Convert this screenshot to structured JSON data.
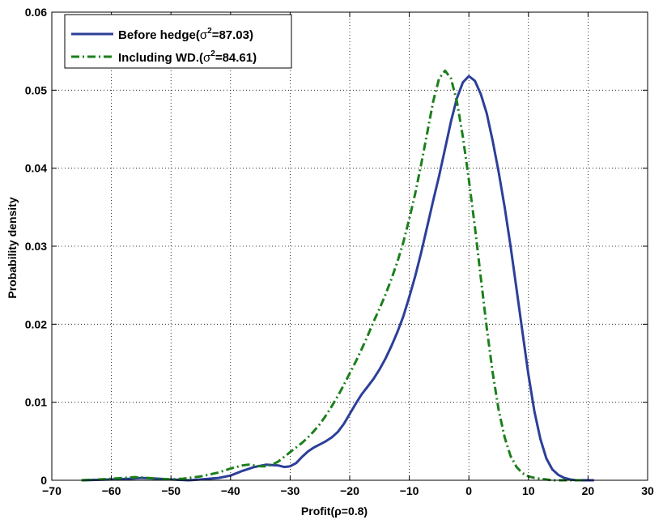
{
  "chart_data": {
    "type": "line",
    "xlabel": "Profit(ρ=0.8)",
    "ylabel": "Probability density",
    "xlim": [
      -70,
      30
    ],
    "ylim": [
      0,
      0.06
    ],
    "xticks": [
      -70,
      -60,
      -50,
      -40,
      -30,
      -20,
      -10,
      0,
      10,
      20,
      30
    ],
    "xtick_labels": [
      "−70",
      "−60",
      "−50",
      "−40",
      "−30",
      "−20",
      "−10",
      "0",
      "10",
      "20",
      "30"
    ],
    "yticks": [
      0,
      0.01,
      0.02,
      0.03,
      0.04,
      0.05,
      0.06
    ],
    "ytick_labels": [
      "0",
      "0.01",
      "0.02",
      "0.03",
      "0.04",
      "0.05",
      "0.06"
    ],
    "grid": true,
    "legend_position": "top-left",
    "series": [
      {
        "name_prefix": "Before hedge(",
        "name_sigma": "σ",
        "name_sup": "2",
        "name_suffix": "=87.03)",
        "color": "#2c3f99",
        "style": "solid",
        "x": [
          -65,
          -60,
          -57,
          -55,
          -52,
          -50,
          -47,
          -45,
          -42,
          -40,
          -38,
          -36,
          -34,
          -32,
          -31,
          -30,
          -29,
          -28,
          -27,
          -26,
          -25,
          -24,
          -23,
          -22,
          -21,
          -20,
          -19,
          -18,
          -17,
          -16,
          -15,
          -14,
          -13,
          -12,
          -11,
          -10,
          -9,
          -8,
          -7,
          -6,
          -5,
          -4,
          -3,
          -2,
          -1,
          0,
          1,
          2,
          3,
          4,
          5,
          6,
          7,
          8,
          9,
          10,
          11,
          12,
          13,
          14,
          15,
          16,
          17,
          18,
          19,
          20,
          21
        ],
        "y": [
          0,
          0.0001,
          0.0002,
          0.0003,
          0.0002,
          0.0001,
          0,
          0.0001,
          0.0003,
          0.0006,
          0.0012,
          0.0017,
          0.002,
          0.0019,
          0.0017,
          0.0018,
          0.0022,
          0.003,
          0.0037,
          0.0042,
          0.0046,
          0.005,
          0.0055,
          0.0062,
          0.0072,
          0.0085,
          0.0098,
          0.011,
          0.012,
          0.013,
          0.0142,
          0.0156,
          0.0172,
          0.019,
          0.021,
          0.0235,
          0.0262,
          0.0292,
          0.0325,
          0.0358,
          0.039,
          0.0425,
          0.046,
          0.049,
          0.051,
          0.0518,
          0.0512,
          0.0495,
          0.047,
          0.0435,
          0.0395,
          0.035,
          0.03,
          0.0245,
          0.019,
          0.0135,
          0.0088,
          0.0053,
          0.0028,
          0.0014,
          0.0007,
          0.0003,
          0.0001,
          0,
          0,
          0,
          0
        ]
      },
      {
        "name_prefix": "Including WD.(",
        "name_sigma": "σ",
        "name_sup": "2",
        "name_suffix": "=84.61)",
        "color": "#1b7f1b",
        "style": "dashdot",
        "x": [
          -65,
          -62,
          -58,
          -56,
          -54,
          -52,
          -50,
          -48,
          -45,
          -42,
          -40,
          -38,
          -37,
          -36,
          -35,
          -34,
          -33,
          -32,
          -31,
          -30,
          -29,
          -28,
          -27,
          -26,
          -25,
          -24,
          -23,
          -22,
          -21,
          -20,
          -19,
          -18,
          -17,
          -16,
          -15,
          -14,
          -13,
          -12,
          -11,
          -10,
          -9,
          -8,
          -7,
          -6,
          -5,
          -4,
          -3,
          -2,
          -1,
          0,
          1,
          2,
          3,
          4,
          5,
          6,
          7,
          8,
          9,
          10,
          11,
          12,
          13,
          14,
          15,
          16,
          17,
          18,
          19
        ],
        "y": [
          0,
          0.0001,
          0.0003,
          0.0004,
          0.0003,
          0.0002,
          0.0001,
          0.0002,
          0.0005,
          0.001,
          0.0015,
          0.0019,
          0.002,
          0.0019,
          0.0018,
          0.0018,
          0.002,
          0.0024,
          0.003,
          0.0036,
          0.0042,
          0.0048,
          0.0055,
          0.0063,
          0.0072,
          0.0083,
          0.0095,
          0.0108,
          0.0122,
          0.0137,
          0.0152,
          0.0168,
          0.0185,
          0.0203,
          0.022,
          0.0238,
          0.0258,
          0.028,
          0.0305,
          0.0335,
          0.0368,
          0.0405,
          0.0445,
          0.0485,
          0.0515,
          0.0525,
          0.0515,
          0.0485,
          0.044,
          0.0385,
          0.0325,
          0.026,
          0.0195,
          0.0138,
          0.009,
          0.0055,
          0.0031,
          0.0017,
          0.0009,
          0.0005,
          0.0003,
          0.0002,
          0.0001,
          0,
          0,
          0,
          0,
          0,
          0
        ]
      }
    ]
  }
}
